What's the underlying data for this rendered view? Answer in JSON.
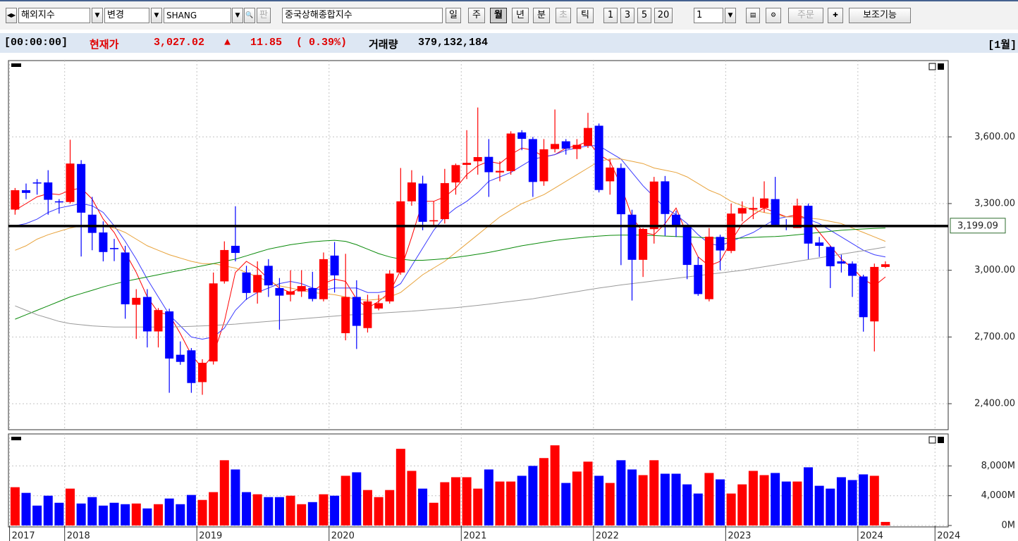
{
  "toolbar": {
    "market": "해외지수",
    "change": "변경",
    "code": "SHANG",
    "pan": "판",
    "name": "중국상해종합지수",
    "periods": [
      "일",
      "주",
      "월",
      "년",
      "분",
      "초",
      "틱"
    ],
    "intervals": [
      "1",
      "3",
      "5",
      "20"
    ],
    "count": "1",
    "order": "주문",
    "aux": "보조기능"
  },
  "info": {
    "time": "[00:00:00]",
    "price_label": "현재가",
    "price": "3,027.02",
    "arrow": "▲",
    "change": "11.85",
    "change_pct": "( 0.39%)",
    "volume_label": "거래량",
    "volume": "379,132,184",
    "period": "[1월]"
  },
  "chart_data": [
    {
      "type": "candlestick",
      "up_color": "#ff0000",
      "down_color": "#0000ff",
      "open": [
        3273,
        3360,
        3395,
        3395,
        3310,
        3307,
        3478,
        3250,
        3170,
        3100,
        3080,
        2845,
        2880,
        2725,
        2815,
        2620,
        2640,
        2497,
        2590,
        2950,
        3110,
        2990,
        2900,
        3020,
        2920,
        2890,
        2905,
        2920,
        2870,
        3066,
        2717,
        2880,
        2740,
        2828,
        2860,
        2990,
        3310,
        3390,
        3220,
        3230,
        3395,
        3474,
        3490,
        3510,
        3440,
        3446,
        3620,
        3590,
        3400,
        3545,
        3580,
        3545,
        3560,
        3650,
        3400,
        3460,
        3250,
        3047,
        3185,
        3400,
        3250,
        3200,
        3024,
        2870,
        3150,
        3087,
        3255,
        3273,
        3280,
        3320,
        3204,
        3190,
        3290,
        3125,
        3105,
        3040,
        3030,
        2972,
        2770,
        3015
      ],
      "high": [
        3370,
        3390,
        3410,
        3450,
        3320,
        3587,
        3495,
        3330,
        3220,
        3141,
        3110,
        2915,
        2915,
        2830,
        2827,
        2680,
        2650,
        2600,
        2990,
        3130,
        3288,
        3020,
        3040,
        3050,
        2965,
        3000,
        3000,
        2993,
        3080,
        3127,
        3074,
        2955,
        2890,
        2890,
        3000,
        3460,
        3450,
        3425,
        3310,
        3456,
        3480,
        3630,
        3732,
        3590,
        3490,
        3625,
        3630,
        3600,
        3590,
        3723,
        3590,
        3590,
        3708,
        3660,
        3500,
        3480,
        3272,
        3190,
        3420,
        3424,
        3268,
        3200,
        3060,
        3190,
        3160,
        3300,
        3310,
        3330,
        3400,
        3420,
        3230,
        3322,
        3300,
        3150,
        3110,
        3070,
        3040,
        2980,
        3030,
        3040
      ],
      "low": [
        3250,
        3320,
        3340,
        3250,
        3255,
        3300,
        3062,
        3090,
        3040,
        3041,
        2782,
        2691,
        2653,
        2653,
        2449,
        2575,
        2449,
        2440,
        2576,
        2940,
        3040,
        2867,
        2850,
        2880,
        2733,
        2860,
        2880,
        2860,
        2860,
        2900,
        2685,
        2646,
        2720,
        2820,
        2850,
        2980,
        3290,
        3180,
        3200,
        3210,
        3340,
        3410,
        3430,
        3330,
        3400,
        3430,
        3540,
        3330,
        3380,
        3530,
        3520,
        3500,
        3550,
        3350,
        3340,
        3023,
        2864,
        2970,
        3120,
        3155,
        3150,
        2960,
        2885,
        2860,
        3000,
        3077,
        3220,
        3230,
        3260,
        3200,
        3180,
        3190,
        3050,
        3060,
        2920,
        2990,
        2880,
        2724,
        2635,
        3010
      ],
      "close": [
        3360,
        3348,
        3393,
        3317,
        3307,
        3480,
        3259,
        3168,
        3082,
        3095,
        2847,
        2876,
        2725,
        2821,
        2603,
        2588,
        2493,
        2584,
        2941,
        3091,
        3078,
        2898,
        2979,
        2932,
        2886,
        2905,
        2929,
        2871,
        3050,
        2977,
        2880,
        2750,
        2860,
        2852,
        2985,
        3310,
        3395,
        3218,
        3225,
        3392,
        3473,
        3483,
        3509,
        3441,
        3447,
        3615,
        3591,
        3397,
        3544,
        3568,
        3547,
        3564,
        3640,
        3361,
        3462,
        3252,
        3047,
        3186,
        3399,
        3253,
        3200,
        3024,
        2893,
        3151,
        3089,
        3255,
        3280,
        3280,
        3323,
        3204,
        3202,
        3291,
        3120,
        3110,
        3018,
        3030,
        2975,
        2789,
        3015,
        3027
      ],
      "moving_averages": [
        {
          "color": "#ff0000",
          "values": [
            3270,
            3300,
            3330,
            3345,
            3340,
            3360,
            3370,
            3320,
            3230,
            3170,
            3080,
            2990,
            2880,
            2810,
            2800,
            2715,
            2620,
            2560,
            2620,
            2770,
            2990,
            3040,
            3010,
            2960,
            2920,
            2900,
            2920,
            2905,
            2940,
            2960,
            2950,
            2870,
            2830,
            2860,
            2900,
            3000,
            3150,
            3310,
            3310,
            3330,
            3370,
            3430,
            3470,
            3490,
            3480,
            3520,
            3550,
            3540,
            3510,
            3520,
            3550,
            3560,
            3580,
            3520,
            3490,
            3380,
            3240,
            3170,
            3160,
            3210,
            3280,
            3160,
            3060,
            3020,
            3040,
            3130,
            3210,
            3250,
            3280,
            3260,
            3240,
            3250,
            3230,
            3170,
            3110,
            3050,
            3010,
            2960,
            2930,
            2970
          ]
        },
        {
          "color": "#3b3bff",
          "values": [
            3200,
            3210,
            3230,
            3260,
            3280,
            3290,
            3300,
            3290,
            3260,
            3200,
            3130,
            3050,
            2960,
            2880,
            2800,
            2750,
            2700,
            2690,
            2700,
            2740,
            2820,
            2870,
            2900,
            2920,
            2940,
            2950,
            2940,
            2920,
            2910,
            2920,
            2920,
            2920,
            2900,
            2900,
            2910,
            2940,
            3020,
            3100,
            3180,
            3240,
            3280,
            3310,
            3350,
            3400,
            3420,
            3440,
            3470,
            3500,
            3510,
            3520,
            3540,
            3550,
            3560,
            3560,
            3530,
            3500,
            3440,
            3380,
            3330,
            3280,
            3250,
            3210,
            3160,
            3120,
            3110,
            3130,
            3150,
            3170,
            3200,
            3230,
            3240,
            3240,
            3230,
            3210,
            3180,
            3150,
            3120,
            3090,
            3070,
            3060
          ]
        },
        {
          "color": "#e8a33c",
          "values": [
            3090,
            3110,
            3140,
            3160,
            3175,
            3190,
            3200,
            3205,
            3200,
            3190,
            3170,
            3140,
            3110,
            3090,
            3070,
            3055,
            3040,
            3030,
            3030,
            3020,
            3010,
            2990,
            2970,
            2950,
            2930,
            2920,
            2910,
            2900,
            2895,
            2890,
            2880,
            2870,
            2865,
            2870,
            2880,
            2900,
            2940,
            2980,
            3010,
            3040,
            3080,
            3120,
            3160,
            3200,
            3240,
            3270,
            3300,
            3320,
            3340,
            3370,
            3400,
            3430,
            3460,
            3490,
            3500,
            3500,
            3490,
            3480,
            3460,
            3450,
            3440,
            3420,
            3390,
            3360,
            3340,
            3310,
            3290,
            3270,
            3260,
            3250,
            3240,
            3240,
            3235,
            3230,
            3220,
            3210,
            3190,
            3170,
            3150,
            3130
          ]
        },
        {
          "color": "#0a8a0a",
          "values": [
            2780,
            2800,
            2820,
            2840,
            2860,
            2880,
            2895,
            2910,
            2925,
            2938,
            2950,
            2960,
            2970,
            2980,
            2990,
            3000,
            3010,
            3020,
            3030,
            3040,
            3050,
            3065,
            3080,
            3095,
            3105,
            3115,
            3122,
            3128,
            3132,
            3135,
            3130,
            3115,
            3095,
            3075,
            3060,
            3050,
            3045,
            3045,
            3048,
            3052,
            3058,
            3065,
            3072,
            3080,
            3090,
            3100,
            3110,
            3118,
            3126,
            3134,
            3140,
            3145,
            3150,
            3154,
            3157,
            3158,
            3158,
            3158,
            3156,
            3154,
            3152,
            3150,
            3148,
            3146,
            3144,
            3142,
            3145,
            3148,
            3150,
            3152,
            3155,
            3160,
            3165,
            3170,
            3175,
            3180,
            3183,
            3186,
            3188,
            3190
          ]
        },
        {
          "color": "#9a9a9a",
          "values": [
            2840,
            2820,
            2800,
            2785,
            2770,
            2760,
            2755,
            2750,
            2747,
            2745,
            2745,
            2745,
            2745,
            2745,
            2745,
            2746,
            2748,
            2750,
            2752,
            2755,
            2758,
            2762,
            2766,
            2770,
            2774,
            2778,
            2782,
            2786,
            2790,
            2794,
            2798,
            2801,
            2804,
            2807,
            2810,
            2813,
            2816,
            2820,
            2824,
            2828,
            2832,
            2837,
            2842,
            2848,
            2854,
            2860,
            2866,
            2872,
            2880,
            2888,
            2896,
            2904,
            2912,
            2920,
            2927,
            2934,
            2940,
            2946,
            2952,
            2958,
            2964,
            2970,
            2976,
            2982,
            2988,
            2994,
            3000,
            3008,
            3016,
            3024,
            3032,
            3040,
            3048,
            3056,
            3064,
            3072,
            3080,
            3088,
            3096,
            3104
          ]
        }
      ],
      "hline": {
        "value": 3199.09,
        "label": "3,199.09",
        "color": "#000000"
      },
      "xlim": [
        -0.6,
        84.7
      ],
      "xticks": [
        {
          "value": -0.5,
          "label": "2017"
        },
        {
          "value": 4.5,
          "label": "2018"
        },
        {
          "value": 16.5,
          "label": "2019"
        },
        {
          "value": 28.5,
          "label": "2020"
        },
        {
          "value": 40.5,
          "label": "2021"
        },
        {
          "value": 52.5,
          "label": "2022"
        },
        {
          "value": 64.5,
          "label": "2023"
        },
        {
          "value": 76.5,
          "label": "2024"
        },
        {
          "value": 83.5,
          "label": "2024"
        }
      ],
      "ylim": [
        2283,
        3943
      ],
      "yticks": [
        {
          "value": 2400,
          "label": "2,400.00"
        },
        {
          "value": 2700,
          "label": "2,700.00"
        },
        {
          "value": 3000,
          "label": "3,000.00"
        },
        {
          "value": 3300,
          "label": "3,300.00"
        },
        {
          "value": 3600,
          "label": "3,600.00"
        }
      ],
      "grid": true
    },
    {
      "type": "bar",
      "values": [
        5140,
        4380,
        2670,
        4000,
        3050,
        4950,
        2950,
        3810,
        2670,
        3050,
        2860,
        2950,
        2290,
        2860,
        3620,
        2860,
        4100,
        3430,
        4480,
        8760,
        7520,
        4480,
        4190,
        3810,
        3810,
        4000,
        2860,
        3140,
        4190,
        4000,
        6670,
        7140,
        4760,
        3810,
        4760,
        10290,
        7330,
        4950,
        3050,
        5810,
        6480,
        6480,
        4950,
        7520,
        5900,
        5900,
        6670,
        8000,
        9050,
        10760,
        5710,
        7240,
        8570,
        6670,
        5710,
        8760,
        7520,
        6760,
        8760,
        6950,
        6950,
        5520,
        4290,
        7050,
        6190,
        4290,
        5520,
        7330,
        6760,
        7050,
        5900,
        5900,
        7810,
        5330,
        4950,
        6480,
        6100,
        6860,
        6670,
        480
      ],
      "ylim": [
        0,
        12290
      ],
      "yticks": [
        {
          "value": 0,
          "label": "0M"
        },
        {
          "value": 4000,
          "label": "4,000M"
        },
        {
          "value": 8000,
          "label": "8,000M"
        }
      ],
      "grid": true
    }
  ]
}
